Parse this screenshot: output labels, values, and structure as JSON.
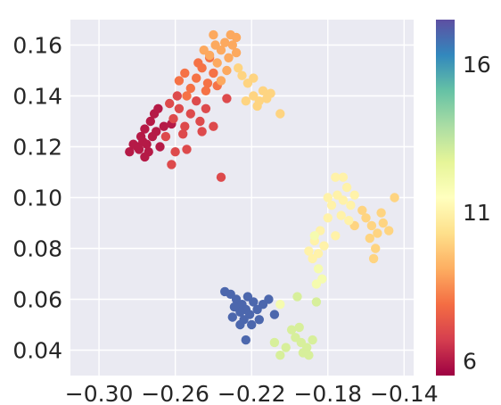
{
  "chart_data": {
    "type": "scatter",
    "title": "",
    "xlabel": "",
    "ylabel": "",
    "xlim": [
      -0.315,
      -0.135
    ],
    "ylim": [
      0.03,
      0.17
    ],
    "x_ticks": [
      -0.3,
      -0.26,
      -0.22,
      -0.18,
      -0.14
    ],
    "x_tick_labels": [
      "−0.30",
      "−0.26",
      "−0.22",
      "−0.18",
      "−0.14"
    ],
    "y_ticks": [
      0.04,
      0.06,
      0.08,
      0.1,
      0.12,
      0.14,
      0.16
    ],
    "y_tick_labels": [
      "0.04",
      "0.06",
      "0.08",
      "0.10",
      "0.12",
      "0.14",
      "0.16"
    ],
    "grid": true,
    "background": "#eaeaf2",
    "colormap": "Spectral",
    "colorbar": {
      "range": [
        5.5,
        17.5
      ],
      "ticks": [
        6,
        11,
        16
      ],
      "tick_labels": [
        "6",
        "11",
        "16"
      ],
      "stops": [
        "#9e0142",
        "#d53e4f",
        "#f46d43",
        "#fdae61",
        "#fee08b",
        "#ffffbf",
        "#e6f598",
        "#abdda4",
        "#66c2a5",
        "#3288bd",
        "#5e4fa2"
      ]
    },
    "points": [
      [
        -0.284,
        0.118,
        6
      ],
      [
        -0.28,
        0.12,
        6
      ],
      [
        -0.277,
        0.122,
        6
      ],
      [
        -0.279,
        0.119,
        6
      ],
      [
        -0.275,
        0.121,
        6
      ],
      [
        -0.272,
        0.124,
        6
      ],
      [
        -0.276,
        0.127,
        6
      ],
      [
        -0.273,
        0.13,
        6
      ],
      [
        -0.27,
        0.126,
        6
      ],
      [
        -0.268,
        0.12,
        6
      ],
      [
        -0.274,
        0.118,
        6
      ],
      [
        -0.271,
        0.133,
        6
      ],
      [
        -0.266,
        0.128,
        6
      ],
      [
        -0.278,
        0.124,
        6
      ],
      [
        -0.269,
        0.135,
        6
      ],
      [
        -0.262,
        0.129,
        6
      ],
      [
        -0.282,
        0.121,
        6
      ],
      [
        -0.276,
        0.116,
        6
      ],
      [
        -0.265,
        0.124,
        7
      ],
      [
        -0.261,
        0.131,
        7
      ],
      [
        -0.258,
        0.135,
        7
      ],
      [
        -0.255,
        0.128,
        7
      ],
      [
        -0.263,
        0.137,
        7
      ],
      [
        -0.259,
        0.14,
        7
      ],
      [
        -0.252,
        0.133,
        7
      ],
      [
        -0.247,
        0.13,
        7
      ],
      [
        -0.244,
        0.135,
        7
      ],
      [
        -0.24,
        0.128,
        7
      ],
      [
        -0.256,
        0.125,
        7
      ],
      [
        -0.249,
        0.138,
        7
      ],
      [
        -0.262,
        0.113,
        7
      ],
      [
        -0.254,
        0.119,
        7
      ],
      [
        -0.236,
        0.108,
        7
      ],
      [
        -0.233,
        0.139,
        7
      ],
      [
        -0.26,
        0.118,
        7
      ],
      [
        -0.246,
        0.126,
        7
      ],
      [
        -0.258,
        0.146,
        8
      ],
      [
        -0.255,
        0.149,
        8
      ],
      [
        -0.252,
        0.143,
        8
      ],
      [
        -0.249,
        0.147,
        8
      ],
      [
        -0.246,
        0.151,
        8
      ],
      [
        -0.243,
        0.145,
        8
      ],
      [
        -0.24,
        0.149,
        8
      ],
      [
        -0.248,
        0.153,
        8
      ],
      [
        -0.254,
        0.14,
        8
      ],
      [
        -0.244,
        0.142,
        8
      ],
      [
        -0.238,
        0.144,
        8
      ],
      [
        -0.242,
        0.155,
        8
      ],
      [
        -0.245,
        0.158,
        9
      ],
      [
        -0.242,
        0.156,
        9
      ],
      [
        -0.239,
        0.16,
        9
      ],
      [
        -0.236,
        0.158,
        9
      ],
      [
        -0.234,
        0.161,
        9
      ],
      [
        -0.238,
        0.153,
        9
      ],
      [
        -0.232,
        0.155,
        9
      ],
      [
        -0.24,
        0.164,
        9
      ],
      [
        -0.23,
        0.16,
        9
      ],
      [
        -0.233,
        0.15,
        9
      ],
      [
        -0.236,
        0.146,
        9
      ],
      [
        -0.228,
        0.157,
        9
      ],
      [
        -0.231,
        0.164,
        9
      ],
      [
        -0.228,
        0.163,
        9
      ],
      [
        -0.223,
        0.138,
        10
      ],
      [
        -0.219,
        0.14,
        10
      ],
      [
        -0.216,
        0.138,
        10
      ],
      [
        -0.212,
        0.139,
        10
      ],
      [
        -0.214,
        0.142,
        10
      ],
      [
        -0.21,
        0.141,
        10
      ],
      [
        -0.217,
        0.136,
        10
      ],
      [
        -0.225,
        0.148,
        10
      ],
      [
        -0.219,
        0.147,
        10
      ],
      [
        -0.205,
        0.133,
        10
      ],
      [
        -0.227,
        0.151,
        10
      ],
      [
        -0.222,
        0.145,
        10
      ],
      [
        -0.16,
        0.092,
        10
      ],
      [
        -0.157,
        0.089,
        10
      ],
      [
        -0.154,
        0.086,
        10
      ],
      [
        -0.151,
        0.09,
        10
      ],
      [
        -0.158,
        0.084,
        10
      ],
      [
        -0.155,
        0.08,
        10
      ],
      [
        -0.148,
        0.087,
        10
      ],
      [
        -0.162,
        0.095,
        10
      ],
      [
        -0.145,
        0.1,
        10
      ],
      [
        -0.156,
        0.076,
        10
      ],
      [
        -0.166,
        0.089,
        10
      ],
      [
        -0.152,
        0.094,
        10
      ],
      [
        -0.178,
        0.097,
        11
      ],
      [
        -0.175,
        0.101,
        11
      ],
      [
        -0.172,
        0.099,
        11
      ],
      [
        -0.17,
        0.104,
        11
      ],
      [
        -0.168,
        0.097,
        11
      ],
      [
        -0.166,
        0.101,
        11
      ],
      [
        -0.176,
        0.108,
        11
      ],
      [
        -0.172,
        0.108,
        11
      ],
      [
        -0.18,
        0.1,
        11
      ],
      [
        -0.184,
        0.087,
        11
      ],
      [
        -0.187,
        0.083,
        11
      ],
      [
        -0.185,
        0.078,
        11
      ],
      [
        -0.188,
        0.076,
        11
      ],
      [
        -0.182,
        0.081,
        11
      ],
      [
        -0.19,
        0.079,
        11
      ],
      [
        -0.173,
        0.093,
        11
      ],
      [
        -0.169,
        0.091,
        11
      ],
      [
        -0.176,
        0.085,
        11
      ],
      [
        -0.18,
        0.092,
        11
      ],
      [
        -0.185,
        0.072,
        12
      ],
      [
        -0.183,
        0.068,
        12
      ],
      [
        -0.187,
        0.085,
        12
      ],
      [
        -0.205,
        0.058,
        12
      ],
      [
        -0.186,
        0.066,
        12
      ],
      [
        -0.196,
        0.061,
        13
      ],
      [
        -0.186,
        0.059,
        13
      ],
      [
        -0.197,
        0.045,
        13
      ],
      [
        -0.194,
        0.043,
        13
      ],
      [
        -0.191,
        0.041,
        13
      ],
      [
        -0.193,
        0.039,
        13
      ],
      [
        -0.188,
        0.044,
        13
      ],
      [
        -0.199,
        0.048,
        13
      ],
      [
        -0.202,
        0.041,
        13
      ],
      [
        -0.205,
        0.038,
        13
      ],
      [
        -0.208,
        0.043,
        13
      ],
      [
        -0.195,
        0.049,
        13
      ],
      [
        -0.19,
        0.038,
        13
      ],
      [
        -0.234,
        0.063,
        17
      ],
      [
        -0.231,
        0.062,
        17
      ],
      [
        -0.228,
        0.06,
        17
      ],
      [
        -0.225,
        0.058,
        17
      ],
      [
        -0.223,
        0.056,
        17
      ],
      [
        -0.226,
        0.055,
        17
      ],
      [
        -0.229,
        0.057,
        17
      ],
      [
        -0.222,
        0.061,
        17
      ],
      [
        -0.219,
        0.059,
        17
      ],
      [
        -0.217,
        0.056,
        17
      ],
      [
        -0.221,
        0.054,
        17
      ],
      [
        -0.224,
        0.052,
        17
      ],
      [
        -0.22,
        0.05,
        17
      ],
      [
        -0.214,
        0.058,
        17
      ],
      [
        -0.211,
        0.06,
        17
      ],
      [
        -0.208,
        0.054,
        17
      ],
      [
        -0.23,
        0.053,
        17
      ],
      [
        -0.226,
        0.05,
        17
      ],
      [
        -0.223,
        0.044,
        17
      ],
      [
        -0.216,
        0.052,
        17
      ]
    ]
  }
}
